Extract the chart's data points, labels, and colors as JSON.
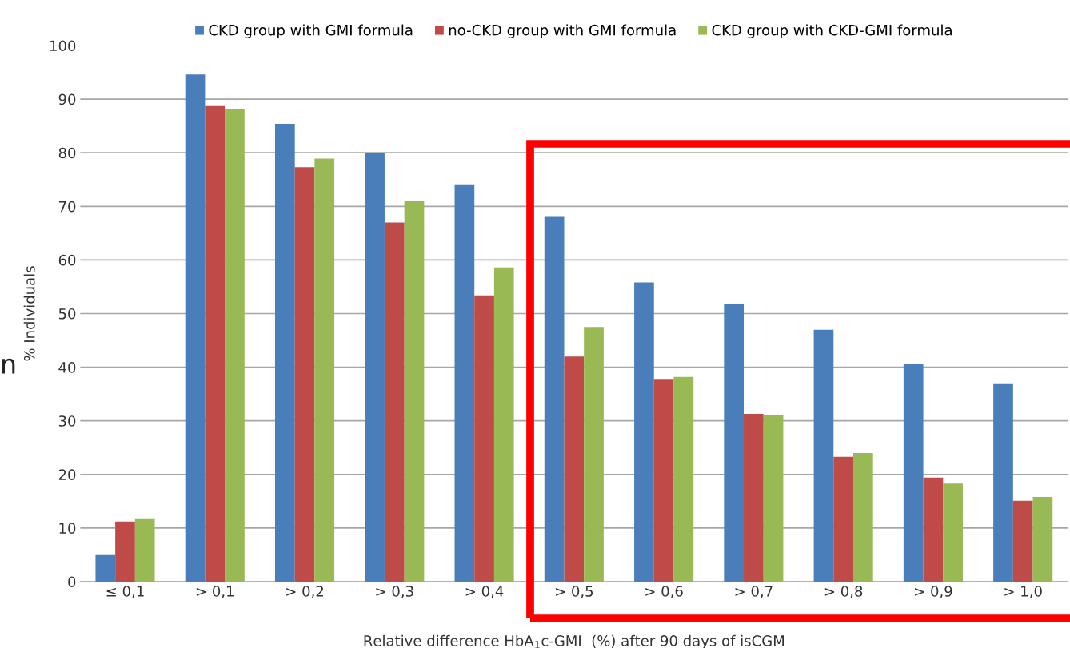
{
  "chart_data": {
    "type": "bar",
    "xlabel": "Relative difference HbA$_{1}$c-GMI  (%) after 90 days of isCGM",
    "ylabel": "% Individuals",
    "categories": [
      "≤ 0,1",
      "> 0,1",
      "> 0,2",
      "> 0,3",
      "> 0,4",
      "> 0,5",
      "> 0,6",
      "> 0,7",
      "> 0,8",
      "> 0,9",
      "> 1,0"
    ],
    "series": [
      {
        "name": "CKD group with GMI formula",
        "color": "#4a7ebb",
        "values": [
          5.1,
          94.6,
          85.4,
          80.0,
          74.1,
          68.2,
          55.8,
          51.8,
          47.0,
          40.6,
          37.0
        ]
      },
      {
        "name": "no-CKD group with GMI formula",
        "color": "#be4b48",
        "values": [
          11.2,
          88.7,
          77.3,
          67.0,
          53.4,
          42.0,
          37.8,
          31.3,
          23.3,
          19.4,
          15.1
        ]
      },
      {
        "name": "CKD group with CKD-GMI formula",
        "color": "#98b954",
        "values": [
          11.8,
          88.2,
          78.9,
          71.1,
          58.6,
          47.5,
          38.2,
          31.1,
          24.0,
          18.3,
          15.8
        ]
      }
    ],
    "ylim": [
      0,
      100
    ],
    "yticks": [
      0,
      10,
      20,
      30,
      40,
      50,
      60,
      70,
      80,
      90,
      100
    ],
    "grid": "y",
    "legend": "top",
    "annotations": [
      "n"
    ]
  }
}
